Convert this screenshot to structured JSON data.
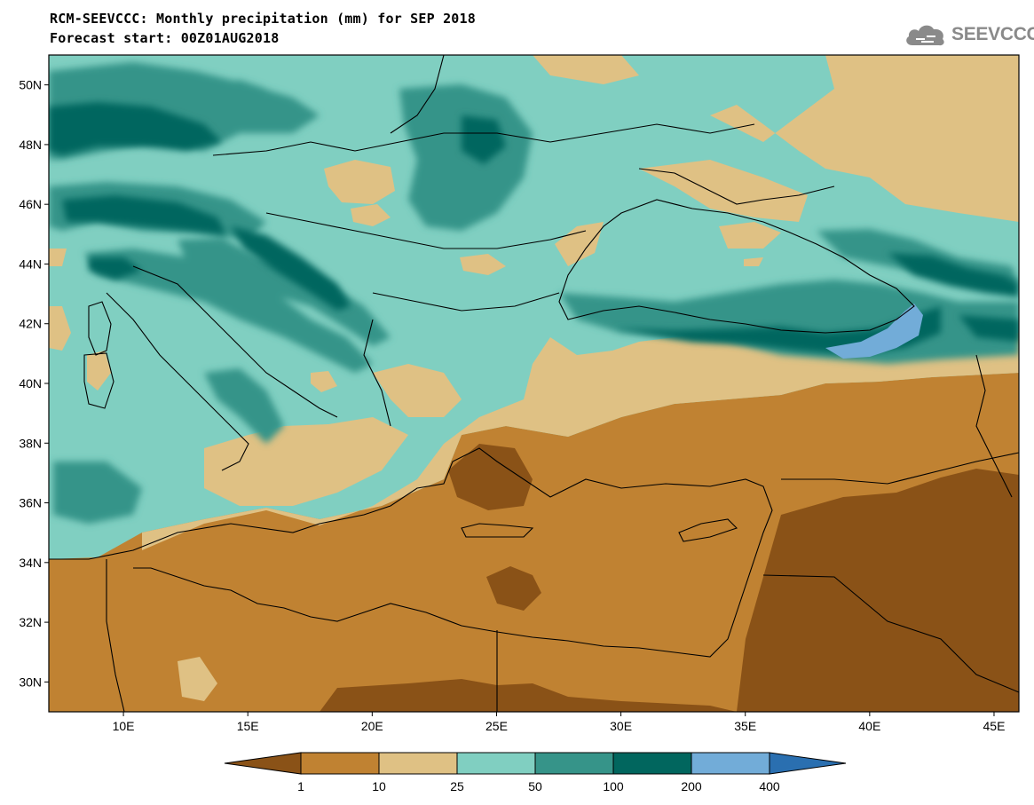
{
  "header": {
    "title_line1": "RCM-SEEVCCC: Monthly precipitation (mm) for SEP 2018",
    "title_line2": "Forecast start: 00Z01AUG2018",
    "logo_text": "SEEVCCC",
    "logo_icon": "cloud-icon"
  },
  "map": {
    "lon_range": [
      7,
      46
    ],
    "lat_range": [
      29,
      51
    ],
    "lat_labels": [
      "30N",
      "32N",
      "34N",
      "36N",
      "38N",
      "40N",
      "42N",
      "44N",
      "46N",
      "48N",
      "50N"
    ],
    "lon_labels": [
      "10E",
      "15E",
      "20E",
      "25E",
      "30E",
      "35E",
      "40E",
      "45E"
    ]
  },
  "legend": {
    "labels": [
      "1",
      "10",
      "25",
      "50",
      "100",
      "200",
      "400"
    ],
    "colors": [
      "#8a5217",
      "#c08232",
      "#dfc184",
      "#80cfc1",
      "#369489",
      "#01665e",
      "#72acd8",
      "#2a6fb0"
    ]
  }
}
